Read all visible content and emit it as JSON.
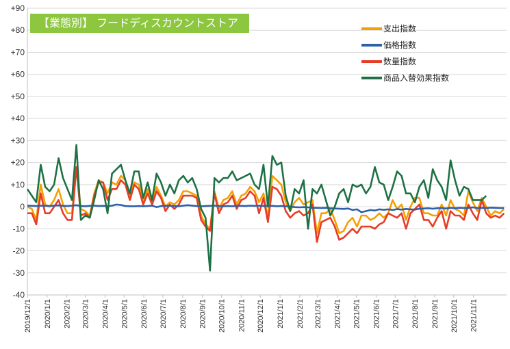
{
  "chart_data": {
    "type": "line",
    "title": "【業態別】 フードディスカウントストア",
    "ylim": [
      -40,
      90
    ],
    "yticks": [
      "+90",
      "+80",
      "+70",
      "+60",
      "+50",
      "+40",
      "+30",
      "+20",
      "+10",
      "0",
      "-10",
      "-20",
      "-30",
      "-40"
    ],
    "ytick_values": [
      90,
      80,
      70,
      60,
      50,
      40,
      30,
      20,
      10,
      0,
      -10,
      -20,
      -30,
      -40
    ],
    "xtick_labels": [
      "2019/12/1",
      "2020/1/1",
      "2020/2/1",
      "2020/3/1",
      "2020/4/1",
      "2020/5/1",
      "2020/6/1",
      "2020/7/1",
      "2020/8/1",
      "2020/9/1",
      "2020/10/1",
      "2020/11/1",
      "2020/12/1",
      "2021/1/1",
      "2021/2/1",
      "2021/3/1",
      "2021/4/1",
      "2021/5/1",
      "2021/6/1",
      "2021/7/1",
      "2021/8/1",
      "2021/9/1",
      "2021/10/1",
      "2021/11/1"
    ],
    "x_start": "2019/12/1",
    "x_step_days": 7,
    "grid": true,
    "legend_position": "top-right",
    "series": [
      {
        "name": "支出指数",
        "color": "#f5a000",
        "values": [
          0,
          -1,
          -6,
          10,
          1,
          0,
          3,
          8,
          1,
          -3,
          -3,
          18,
          -1,
          -2,
          -4,
          6,
          12,
          11,
          6,
          11,
          10,
          14,
          12,
          5,
          11,
          10,
          2,
          8,
          2,
          9,
          5,
          0,
          2,
          1,
          3,
          7,
          7,
          6,
          5,
          -4,
          -8,
          -10,
          7,
          -1,
          3,
          4,
          7,
          1,
          5,
          6,
          9,
          7,
          2,
          6,
          -5,
          14,
          12,
          10,
          2,
          -2,
          2,
          4,
          1,
          2,
          3,
          -12,
          -3,
          -3,
          -1,
          -6,
          -12,
          -11,
          -7,
          -5,
          -9,
          -4,
          -4,
          -6,
          -5,
          -3,
          -5,
          -3,
          3,
          -1,
          1,
          -6,
          0,
          4,
          4,
          -3,
          -3,
          -4,
          -4,
          1,
          -4,
          3,
          -1,
          -2,
          -4,
          7,
          2,
          -2,
          4,
          0,
          -4,
          -2,
          -3,
          -1
        ]
      },
      {
        "name": "価格指数",
        "color": "#2e5faa",
        "values": [
          0.5,
          0.4,
          0.3,
          0.5,
          0.4,
          0.3,
          0.5,
          0.6,
          0.4,
          0.3,
          0.5,
          0.7,
          0.3,
          0.2,
          0.4,
          0.5,
          0.3,
          0.4,
          0.2,
          0.5,
          1,
          0.8,
          0.3,
          0.2,
          0.2,
          0.3,
          0.2,
          0.3,
          0.5,
          -0.2,
          0.3,
          0.4,
          0.5,
          0.3,
          0.2,
          0.5,
          0.7,
          0.5,
          0.3,
          0.2,
          0.3,
          0.4,
          0.5,
          0.3,
          0.2,
          0.3,
          0.2,
          0.5,
          0.4,
          0.3,
          0.5,
          0.4,
          0.5,
          0.3,
          0.5,
          0.4,
          0.2,
          0.3,
          0.2,
          0.1,
          -0.2,
          -0.3,
          -0.2,
          -0.3,
          -0.5,
          -0.5,
          -0.6,
          -0.5,
          -0.7,
          -0.8,
          -0.9,
          -1,
          -0.8,
          -1.5,
          -1.2,
          -2.5,
          -2,
          -1.5,
          -1.7,
          -1.2,
          -1.4,
          -1.2,
          -1.5,
          -1.1,
          -1.3,
          -1,
          -1.2,
          -1.3,
          -0.9,
          -0.8,
          -0.7,
          -0.9,
          -0.7,
          -0.6,
          -0.8,
          -0.5,
          -0.7,
          -0.5,
          -0.6,
          -0.5,
          -0.3,
          -0.6,
          -0.5,
          -0.6,
          -0.4,
          -0.5,
          -0.6,
          -0.6
        ]
      },
      {
        "name": "数量指数",
        "color": "#e63c28",
        "values": [
          -3,
          -3,
          -8,
          6,
          -3,
          -3,
          0,
          3,
          -3,
          -6,
          -6,
          18,
          -4,
          -3,
          -5,
          5,
          11,
          11,
          3,
          8,
          8,
          12,
          10,
          3,
          10,
          8,
          1,
          6,
          1,
          7,
          4,
          -2,
          1,
          -1,
          1,
          5,
          5,
          5,
          4,
          -6,
          -9,
          -11,
          6,
          -3,
          1,
          2,
          5,
          -1,
          3,
          4,
          7,
          5,
          -3,
          4,
          -7,
          9,
          8,
          5,
          -2,
          -5,
          -3,
          -2,
          -4,
          -3,
          1,
          -16,
          -7,
          -6,
          -5,
          -9,
          -15,
          -14,
          -12,
          -10,
          -12,
          -9,
          -9,
          -9,
          -10,
          -8,
          -7,
          -3,
          -4,
          -5,
          -3,
          -10,
          -3,
          -1,
          1,
          -6,
          -6,
          -9,
          -5,
          -2,
          -10,
          -2,
          -4,
          -4,
          -6,
          1,
          -3,
          -6,
          3,
          -3,
          -5,
          -4,
          -5,
          -3
        ]
      },
      {
        "name": "商品入替効果指数",
        "color": "#1e7145",
        "values": [
          8,
          5,
          2,
          19,
          9,
          7,
          10,
          22,
          13,
          8,
          3,
          28,
          -6,
          -4,
          -5,
          3,
          12,
          8,
          -3,
          15,
          17,
          19,
          12,
          6,
          16,
          16,
          4,
          11,
          3,
          15,
          11,
          5,
          10,
          6,
          12,
          14,
          11,
          13,
          8,
          -1,
          -5,
          -29,
          13,
          11,
          13,
          13,
          16,
          12,
          13,
          14,
          15,
          10,
          8,
          19,
          0,
          23,
          19,
          20,
          5,
          -2,
          8,
          6,
          12,
          -10,
          8,
          6,
          10,
          3,
          -4,
          0,
          6,
          8,
          2,
          10,
          9,
          10,
          6,
          9,
          18,
          11,
          10,
          3,
          9,
          16,
          14,
          6,
          6,
          2,
          9,
          12,
          4,
          17,
          12,
          9,
          3,
          21,
          12,
          5,
          9,
          8,
          3,
          3,
          3,
          5
        ]
      }
    ]
  }
}
